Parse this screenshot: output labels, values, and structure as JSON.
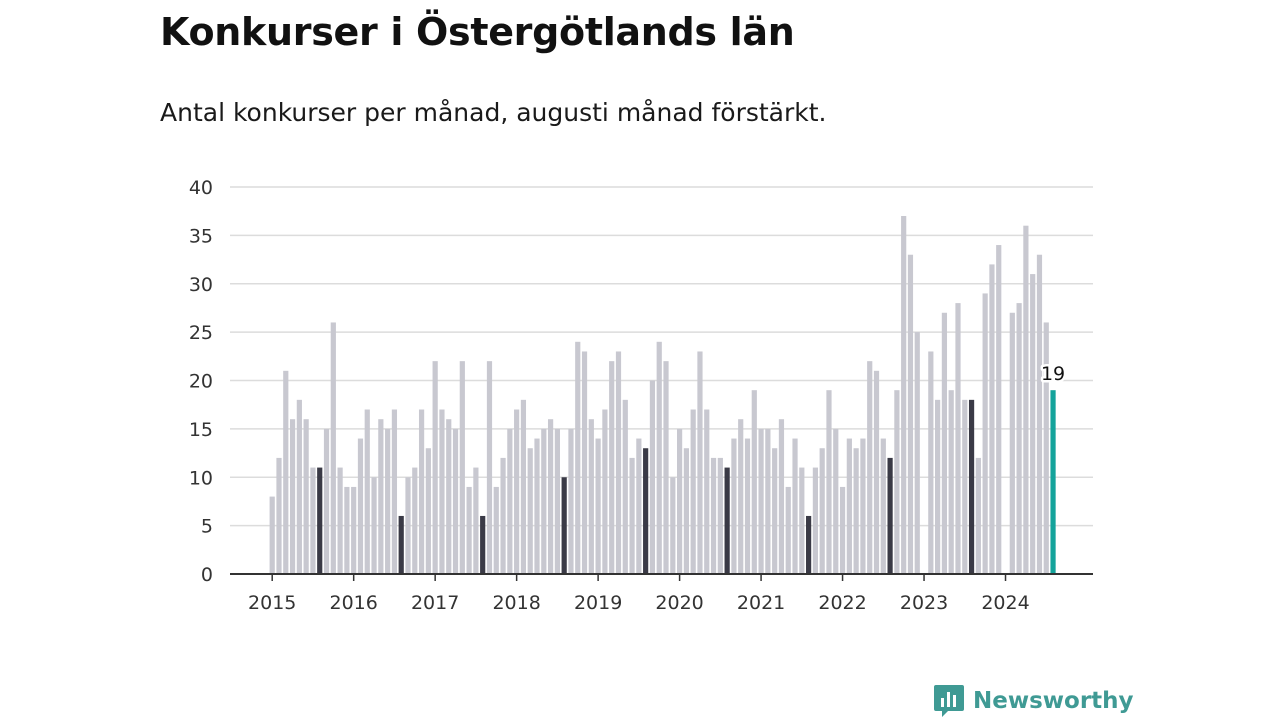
{
  "title": "Konkurser i Östergötlands län",
  "subtitle": "Antal konkurser per månad, augusti månad förstärkt.",
  "brand": {
    "name": "Newsworthy",
    "color": "#3f9a94"
  },
  "colors": {
    "bar": "#c8c8d0",
    "highlight": "#3a3a46",
    "latest": "#14a39b",
    "grid": "#dcdcdc",
    "axis": "#333333"
  },
  "chart_data": {
    "type": "bar",
    "title": "Konkurser i Östergötlands län",
    "subtitle": "Antal konkurser per månad, augusti månad förstärkt.",
    "xlabel": "",
    "ylabel": "",
    "ylim": [
      0,
      40
    ],
    "yticks": [
      0,
      5,
      10,
      15,
      20,
      25,
      30,
      35,
      40
    ],
    "xtick_labels": [
      "2015",
      "2016",
      "2017",
      "2018",
      "2019",
      "2020",
      "2021",
      "2022",
      "2023",
      "2024"
    ],
    "grid": true,
    "highlight_month": "augusti",
    "start": "2015-01",
    "end": "2024-08",
    "values": [
      8,
      12,
      21,
      16,
      18,
      16,
      11,
      11,
      15,
      26,
      11,
      9,
      9,
      14,
      17,
      10,
      16,
      15,
      17,
      6,
      10,
      11,
      17,
      13,
      22,
      17,
      16,
      15,
      22,
      9,
      11,
      6,
      22,
      9,
      12,
      15,
      17,
      18,
      13,
      14,
      15,
      16,
      15,
      10,
      15,
      24,
      23,
      16,
      14,
      17,
      22,
      23,
      18,
      12,
      14,
      13,
      20,
      24,
      22,
      10,
      15,
      13,
      17,
      23,
      17,
      12,
      12,
      11,
      14,
      16,
      14,
      19,
      15,
      15,
      13,
      16,
      9,
      14,
      11,
      6,
      11,
      13,
      19,
      15,
      9,
      14,
      13,
      14,
      22,
      21,
      14,
      12,
      19,
      37,
      33,
      25,
      0,
      23,
      18,
      27,
      19,
      28,
      18,
      18,
      12,
      29,
      32,
      34,
      0,
      27,
      28,
      36,
      31,
      33,
      26,
      19
    ],
    "annotations": [
      {
        "month": "2024-08",
        "label": "19"
      }
    ]
  }
}
